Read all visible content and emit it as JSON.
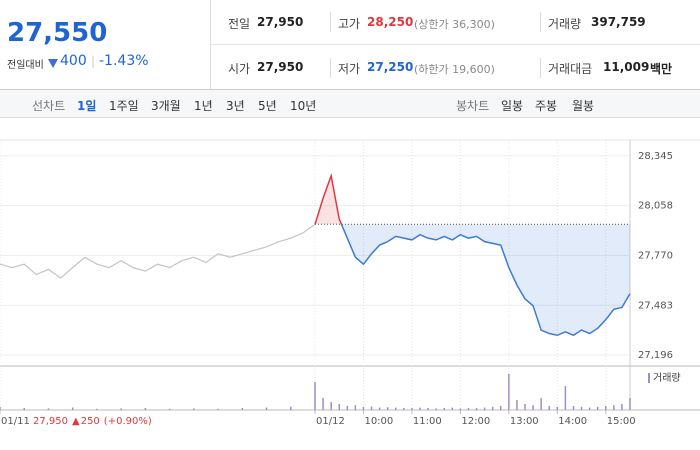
{
  "header": {
    "price": "27,550",
    "change_label": "전일대비",
    "change": "400",
    "change_pct": "-1.43%"
  },
  "stats": [
    [
      {
        "label": "전일",
        "value": "27,950"
      },
      {
        "label": "고가",
        "value": "28,250",
        "note": "(상한가 36,300)"
      },
      {
        "label": "거래량",
        "value": "397,759"
      }
    ],
    [
      {
        "label": "시가",
        "value": "27,950"
      },
      {
        "label": "저가",
        "value": "27,250",
        "note": "(하한가 19,600)"
      },
      {
        "label": "거래대금",
        "value": "11,009",
        "unit": "백만"
      }
    ]
  ],
  "tabs": {
    "line_label": "선차트",
    "line": [
      "1일",
      "1주일",
      "3개월",
      "1년",
      "3년",
      "5년",
      "10년"
    ],
    "candle_label": "봉차트",
    "candle": [
      "일봉",
      "주봉",
      "월봉"
    ]
  },
  "chart": {
    "type": "line",
    "xlim": [
      -390,
      390
    ],
    "ylim": [
      27150,
      28390
    ],
    "yticks": [
      {
        "value": 28345,
        "label": "28,345"
      },
      {
        "value": 28058,
        "label": "28,058"
      },
      {
        "value": 27770,
        "label": "27,770"
      },
      {
        "value": 27483,
        "label": "27,483"
      },
      {
        "value": 27196,
        "label": "27,196"
      }
    ],
    "xticks": [
      {
        "value": -390,
        "label": "01/11"
      },
      {
        "value": 0,
        "label": "01/12"
      },
      {
        "value": 60,
        "label": "10:00"
      },
      {
        "value": 120,
        "label": "11:00"
      },
      {
        "value": 180,
        "label": "12:00"
      },
      {
        "value": 240,
        "label": "13:00"
      },
      {
        "value": 300,
        "label": "14:00"
      },
      {
        "value": 360,
        "label": "15:00"
      }
    ],
    "reference": 27950,
    "prev_summary": {
      "close": "27,950",
      "change": "250",
      "change_pct": "(+0.90%)"
    },
    "prev_day": {
      "color": "#c4c4c4",
      "x": [
        -390,
        -375,
        -360,
        -345,
        -330,
        -315,
        -300,
        -285,
        -270,
        -255,
        -240,
        -225,
        -210,
        -195,
        -180,
        -165,
        -150,
        -135,
        -120,
        -105,
        -90,
        -75,
        -60,
        -45,
        -30,
        -15,
        0
      ],
      "values": [
        27720,
        27700,
        27720,
        27660,
        27690,
        27640,
        27700,
        27760,
        27720,
        27700,
        27740,
        27700,
        27680,
        27720,
        27700,
        27740,
        27760,
        27730,
        27780,
        27760,
        27780,
        27800,
        27820,
        27850,
        27870,
        27900,
        27950
      ]
    },
    "today": {
      "up_color": "#e0383e",
      "down_color": "#3a7bd5",
      "x": [
        0,
        10,
        20,
        30,
        40,
        50,
        60,
        70,
        80,
        90,
        100,
        110,
        120,
        130,
        140,
        150,
        160,
        170,
        180,
        190,
        200,
        210,
        220,
        230,
        240,
        250,
        260,
        270,
        280,
        290,
        300,
        310,
        320,
        330,
        340,
        350,
        360,
        370,
        380,
        390
      ],
      "values": [
        27950,
        28100,
        28230,
        27980,
        27870,
        27760,
        27720,
        27780,
        27830,
        27850,
        27880,
        27870,
        27860,
        27890,
        27870,
        27860,
        27880,
        27860,
        27890,
        27870,
        27880,
        27850,
        27840,
        27830,
        27700,
        27600,
        27520,
        27480,
        27340,
        27320,
        27310,
        27330,
        27310,
        27340,
        27320,
        27350,
        27400,
        27460,
        27470,
        27550
      ]
    },
    "volume": {
      "name": "거래량",
      "color": "#a08cc8",
      "ylim": [
        0,
        100
      ],
      "x": [
        -390,
        -360,
        -330,
        -300,
        -270,
        -240,
        -210,
        -180,
        -150,
        -120,
        -90,
        -60,
        -30,
        0,
        10,
        20,
        30,
        40,
        50,
        60,
        70,
        80,
        90,
        100,
        110,
        120,
        130,
        140,
        150,
        160,
        170,
        180,
        190,
        200,
        210,
        220,
        230,
        240,
        250,
        260,
        270,
        280,
        290,
        300,
        310,
        320,
        330,
        340,
        350,
        360,
        370,
        380,
        390
      ],
      "values": [
        8,
        5,
        4,
        6,
        3,
        4,
        5,
        3,
        4,
        3,
        5,
        6,
        8,
        70,
        30,
        20,
        15,
        10,
        12,
        8,
        9,
        6,
        7,
        6,
        5,
        5,
        6,
        5,
        4,
        5,
        6,
        4,
        5,
        5,
        6,
        8,
        10,
        90,
        25,
        15,
        12,
        30,
        10,
        8,
        60,
        10,
        8,
        6,
        8,
        10,
        12,
        15,
        30
      ]
    }
  }
}
